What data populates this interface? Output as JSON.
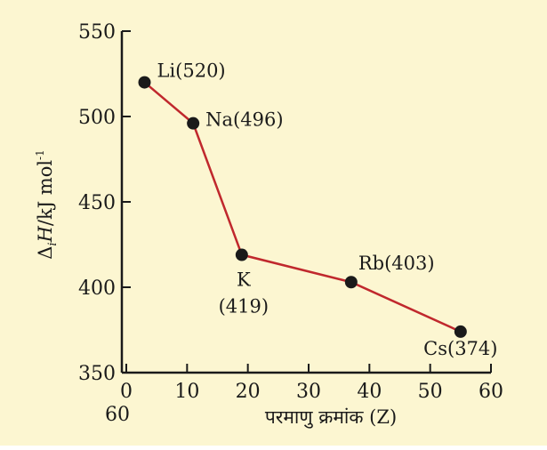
{
  "chart_data": {
    "type": "line",
    "title": "",
    "xlabel": "परमाणु क्रमांक (Z)",
    "ylabel": "ΔiH/kJ mol⁻¹",
    "ylabel_parts": {
      "delta": "Δ",
      "subscript": "i",
      "symbol": "H",
      "unit": "/kJ mol",
      "superscript": "-1"
    },
    "xlim": [
      0,
      60
    ],
    "ylim": [
      350,
      550
    ],
    "x_ticks": [
      0,
      10,
      20,
      30,
      40,
      50,
      60
    ],
    "y_ticks": [
      350,
      400,
      450,
      500,
      550
    ],
    "x_extra_label": "60",
    "grid": false,
    "line_color": "#c0282d",
    "marker_color": "#1a1a1a",
    "background": "#fcf6d1",
    "points": [
      {
        "element": "Li",
        "x": 3,
        "y": 520,
        "label": "Li(520)"
      },
      {
        "element": "Na",
        "x": 11,
        "y": 496,
        "label": "Na(496)"
      },
      {
        "element": "K",
        "x": 19,
        "y": 419,
        "label": "K",
        "label_line2": "(419)"
      },
      {
        "element": "Rb",
        "x": 37,
        "y": 403,
        "label": "Rb(403)"
      },
      {
        "element": "Cs",
        "x": 55,
        "y": 374,
        "label": "Cs(374)"
      }
    ]
  }
}
